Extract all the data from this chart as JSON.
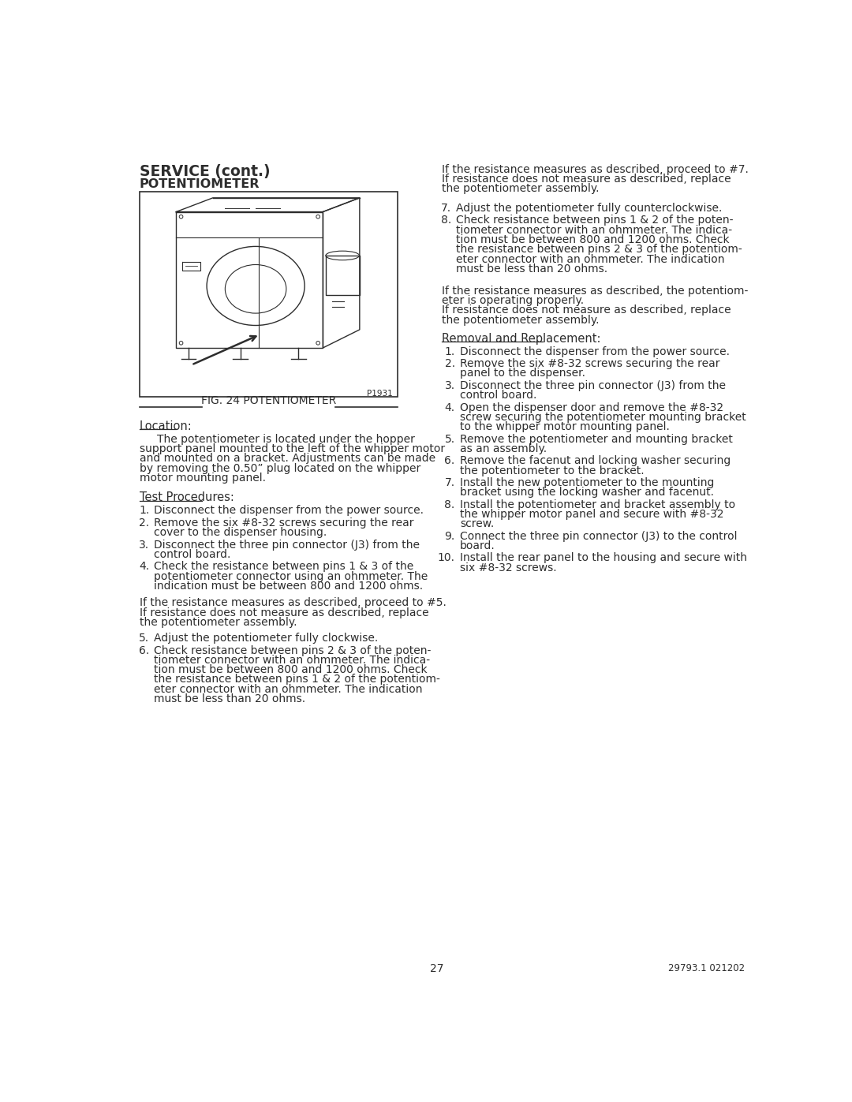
{
  "bg_color": "#ffffff",
  "text_color": "#2d2d2d",
  "page_number": "27",
  "footer_right": "29793.1 021202",
  "header_bold": "SERVICE (cont.)",
  "header_sub": "POTENTIOMETER",
  "fig_label": "FIG. 24 POTENTIOMETER",
  "fig_note": "P1931",
  "location_heading": "Location:",
  "location_text": "The potentiometer is located under the hopper\nsupport panel mounted to the left of the whipper motor\nand mounted on a bracket. Adjustments can be made\nby removing the 0.50” plug located on the whipper\nmotor mounting panel.",
  "test_heading": "Test Procedures:",
  "test_items": [
    "Disconnect the dispenser from the power source.",
    "Remove the six #8-32 screws securing the rear\ncover to the dispenser housing.",
    "Disconnect the three pin connector (J3) from the\ncontrol board.",
    "Check the resistance between pins 1 & 3 of the\npotentiometer connector using an ohmmeter. The\nindication must be between 800 and 1200 ohms."
  ],
  "between_test_text": "If the resistance measures as described, proceed to #5.\nIf resistance does not measure as described, replace\nthe potentiometer assembly.",
  "test_items_5_6": [
    "Adjust the potentiometer fully clockwise.",
    "Check resistance between pins 2 & 3 of the poten-\ntiometer connector with an ohmmeter. The indica-\ntion must be between 800 and 1200 ohms. Check\nthe resistance between pins 1 & 2 of the potentiom-\neter connector with an ohmmeter. The indication\nmust be less than 20 ohms."
  ],
  "right_col_top": "If the resistance measures as described, proceed to #7.\nIf resistance does not measure as described, replace\nthe potentiometer assembly.",
  "right_items_7_8": [
    "Adjust the potentiometer fully counterclockwise.",
    "Check resistance between pins 1 & 2 of the poten-\ntiometer connector with an ohmmeter. The indica-\ntion must be between 800 and 1200 ohms. Check\nthe resistance between pins 2 & 3 of the potentiom-\neter connector with an ohmmeter. The indication\nmust be less than 20 ohms."
  ],
  "right_middle_text": "If the resistance measures as described, the potentiom-\neter is operating properly.\nIf resistance does not measure as described, replace\nthe potentiometer assembly.",
  "removal_heading": "Removal and Replacement:",
  "removal_items": [
    "Disconnect the dispenser from the power source.",
    "Remove the six #8-32 screws securing the rear\npanel to the dispenser.",
    "Disconnect the three pin connector (J3) from the\ncontrol board.",
    "Open the dispenser door and remove the #8-32\nscrew securing the potentiometer mounting bracket\nto the whipper motor mounting panel.",
    "Remove the potentiometer and mounting bracket\nas an assembly.",
    "Remove the facenut and locking washer securing\nthe potentiometer to the bracket.",
    "Install the new potentiometer to the mounting\nbracket using the locking washer and facenut.",
    "Install the potentiometer and bracket assembly to\nthe whipper motor panel and secure with #8-32\nscrew.",
    "Connect the three pin connector (J3) to the control\nboard.",
    "Install the rear panel to the housing and secure with\nsix #8-32 screws."
  ]
}
